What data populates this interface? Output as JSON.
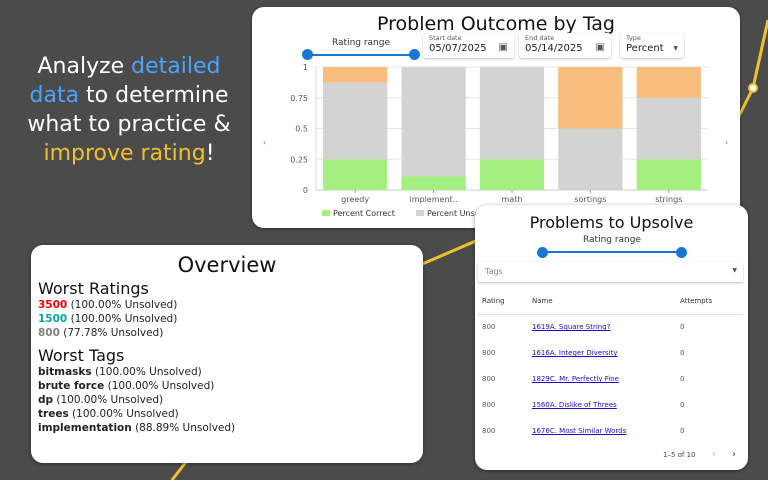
{
  "hero": {
    "parts": [
      {
        "text": "Analyze ",
        "color": "#ffffff"
      },
      {
        "text": "detailed data",
        "color": "#4aa3ff"
      },
      {
        "text": " to determine what to practice & ",
        "color": "#ffffff"
      },
      {
        "text": "improve rating",
        "color": "#f0c030"
      },
      {
        "text": "!",
        "color": "#ffffff"
      }
    ]
  },
  "outcome": {
    "title": "Problem Outcome by Tag",
    "rating_label": "Rating range",
    "start_label": "Start date",
    "start_value": "05/07/2025",
    "end_label": "End date",
    "end_value": "05/14/2025",
    "type_label": "Type",
    "type_value": "Percent",
    "icons": {
      "calendar": "calendar-icon",
      "dropdown": "caret-down-icon",
      "prev": "chevron-left-icon",
      "next": "chevron-right-icon"
    },
    "nav_prev": "‹",
    "nav_next": "›"
  },
  "chart_data": {
    "type": "bar",
    "stacked": true,
    "categories": [
      "greedy",
      "implement..",
      "math",
      "sortings",
      "strings"
    ],
    "series": [
      {
        "name": "Percent Correct",
        "color": "#a3ef80",
        "values": [
          0.25,
          0.11,
          0.25,
          0,
          0.25
        ]
      },
      {
        "name": "Percent Unsolved",
        "color": "#d3d3d3",
        "values": [
          0.625,
          0.89,
          0.75,
          0.5,
          0.5
        ]
      },
      {
        "name": "",
        "color": "#f6bd7d",
        "values": [
          0.125,
          0,
          0,
          0.5,
          0.25
        ]
      }
    ],
    "yticks": [
      "0",
      "0.25",
      "0.5",
      "0.75",
      "1"
    ],
    "ylim": [
      0,
      1
    ],
    "grid": true,
    "legend": "bottom"
  },
  "overview": {
    "title": "Overview",
    "ratings_heading": "Worst Ratings",
    "ratings": [
      {
        "value": "3500",
        "detail": " (100.00% Unsolved)",
        "color": "#ff0000"
      },
      {
        "value": "1500",
        "detail": " (100.00% Unsolved)",
        "color": "#03a89e"
      },
      {
        "value": "800",
        "detail": " (77.78% Unsolved)",
        "color": "#808080"
      }
    ],
    "tags_heading": "Worst Tags",
    "tags": [
      {
        "name": "bitmasks",
        "detail": " (100.00% Unsolved)"
      },
      {
        "name": "brute force",
        "detail": " (100.00% Unsolved)"
      },
      {
        "name": "dp",
        "detail": " (100.00% Unsolved)"
      },
      {
        "name": "trees",
        "detail": " (100.00% Unsolved)"
      },
      {
        "name": "implementation",
        "detail": " (88.89% Unsolved)"
      }
    ]
  },
  "upsolve": {
    "title": "Problems to Upsolve",
    "rating_label": "Rating range",
    "tags_placeholder": "Tags",
    "columns": [
      "Rating",
      "Name",
      "Attempts"
    ],
    "rows": [
      {
        "rating": "800",
        "name": "1619A. Square String?",
        "attempts": "0"
      },
      {
        "rating": "800",
        "name": "1616A. Integer Diversity",
        "attempts": "0"
      },
      {
        "rating": "800",
        "name": "1829C. Mr. Perfectly Fine",
        "attempts": "0"
      },
      {
        "rating": "800",
        "name": "1560A. Dislike of Threes",
        "attempts": "0"
      },
      {
        "rating": "800",
        "name": "1676C. Most Similar Words",
        "attempts": "0"
      }
    ],
    "pagination": "1–5 of 10",
    "prev": "‹",
    "next": "›"
  }
}
